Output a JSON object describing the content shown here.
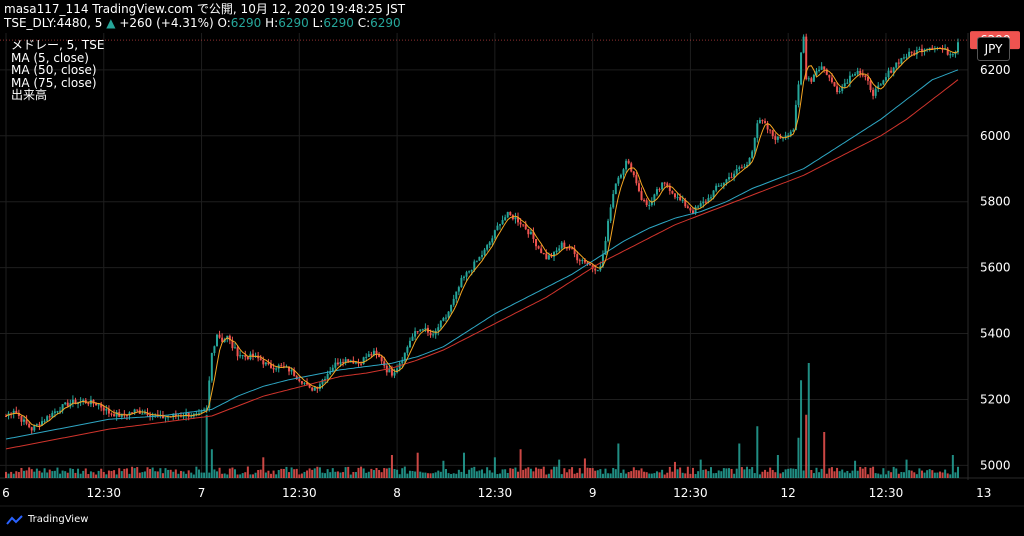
{
  "header": {
    "line1": "masa117_114 TradingView.com で公開, 10月 12, 2020 19:48:25 JST",
    "symbol": "TSE_DLY:4480, 5",
    "last": "6290",
    "change": "+260 (+4.31%)",
    "o_label": "O:",
    "o_value": "6290",
    "h_label": "H:",
    "h_value": "6290",
    "l_label": "L:",
    "l_value": "6290",
    "c_label": "C:",
    "c_value": "6290"
  },
  "legend": {
    "title": "メドレー, 5, TSE",
    "ma5": "MA (5, close)",
    "ma50": "MA (50, close)",
    "ma75": "MA (75, close)",
    "volume": "出来高"
  },
  "currency": "JPY",
  "branding": "TradingView",
  "colors": {
    "up": "#26a69a",
    "down": "#ef5350",
    "ma5": "#f5a623",
    "ma50": "#2ea7c4",
    "ma75": "#d0342c",
    "price_line": "#ef5350",
    "grid": "#1e1e1e"
  },
  "chart_data": {
    "type": "candlestick",
    "title": "メドレー, 5, TSE",
    "x_tick_labels": [
      "6",
      "12:30",
      "7",
      "12:30",
      "8",
      "12:30",
      "9",
      "12:30",
      "12",
      "12:30",
      "13"
    ],
    "y_tick_labels": [
      "5000",
      "5200",
      "5400",
      "5600",
      "5800",
      "6000",
      "6200"
    ],
    "ylim": [
      4980,
      6330
    ],
    "last_price": 6290,
    "last_price_label": "6290",
    "grid": true,
    "series": [
      {
        "name": "MA (5, close)",
        "type": "line"
      },
      {
        "name": "MA (50, close)",
        "type": "line"
      },
      {
        "name": "MA (75, close)",
        "type": "line"
      },
      {
        "name": "出来高",
        "type": "volume"
      }
    ],
    "close_path": [
      [
        0,
        5150
      ],
      [
        3,
        5170
      ],
      [
        6,
        5140
      ],
      [
        10,
        5110
      ],
      [
        15,
        5140
      ],
      [
        20,
        5170
      ],
      [
        25,
        5190
      ],
      [
        30,
        5195
      ],
      [
        36,
        5185
      ],
      [
        40,
        5160
      ],
      [
        45,
        5150
      ],
      [
        50,
        5165
      ],
      [
        55,
        5160
      ],
      [
        60,
        5145
      ],
      [
        65,
        5150
      ],
      [
        70,
        5155
      ],
      [
        75,
        5150
      ],
      [
        78,
        5170
      ],
      [
        80,
        5340
      ],
      [
        81,
        5370
      ],
      [
        82,
        5400
      ],
      [
        84,
        5380
      ],
      [
        86,
        5390
      ],
      [
        88,
        5360
      ],
      [
        90,
        5340
      ],
      [
        93,
        5330
      ],
      [
        96,
        5330
      ],
      [
        99,
        5320
      ],
      [
        102,
        5300
      ],
      [
        106,
        5300
      ],
      [
        110,
        5290
      ],
      [
        113,
        5270
      ],
      [
        116,
        5250
      ],
      [
        118,
        5230
      ],
      [
        121,
        5240
      ],
      [
        124,
        5270
      ],
      [
        127,
        5300
      ],
      [
        130,
        5320
      ],
      [
        134,
        5320
      ],
      [
        137,
        5310
      ],
      [
        140,
        5330
      ],
      [
        143,
        5340
      ],
      [
        146,
        5320
      ],
      [
        148,
        5290
      ],
      [
        150,
        5280
      ],
      [
        152,
        5300
      ],
      [
        155,
        5340
      ],
      [
        157,
        5380
      ],
      [
        159,
        5400
      ],
      [
        162,
        5420
      ],
      [
        164,
        5400
      ],
      [
        166,
        5390
      ],
      [
        168,
        5420
      ],
      [
        171,
        5450
      ],
      [
        174,
        5500
      ],
      [
        177,
        5560
      ],
      [
        180,
        5590
      ],
      [
        183,
        5620
      ],
      [
        186,
        5650
      ],
      [
        189,
        5690
      ],
      [
        192,
        5740
      ],
      [
        195,
        5760
      ],
      [
        198,
        5750
      ],
      [
        201,
        5730
      ],
      [
        204,
        5700
      ],
      [
        207,
        5660
      ],
      [
        210,
        5630
      ],
      [
        213,
        5640
      ],
      [
        216,
        5670
      ],
      [
        219,
        5660
      ],
      [
        222,
        5630
      ],
      [
        225,
        5620
      ],
      [
        228,
        5600
      ],
      [
        231,
        5600
      ],
      [
        233,
        5680
      ],
      [
        235,
        5790
      ],
      [
        237,
        5860
      ],
      [
        239,
        5890
      ],
      [
        241,
        5920
      ],
      [
        243,
        5900
      ],
      [
        245,
        5860
      ],
      [
        247,
        5810
      ],
      [
        249,
        5790
      ],
      [
        251,
        5800
      ],
      [
        253,
        5830
      ],
      [
        255,
        5850
      ],
      [
        257,
        5850
      ],
      [
        259,
        5830
      ],
      [
        261,
        5810
      ],
      [
        264,
        5790
      ],
      [
        267,
        5770
      ],
      [
        270,
        5790
      ],
      [
        273,
        5810
      ],
      [
        276,
        5840
      ],
      [
        279,
        5860
      ],
      [
        282,
        5880
      ],
      [
        285,
        5900
      ],
      [
        288,
        5910
      ],
      [
        290,
        5960
      ],
      [
        292,
        6040
      ],
      [
        294,
        6040
      ],
      [
        296,
        6020
      ],
      [
        298,
        6000
      ],
      [
        300,
        5990
      ],
      [
        302,
        6000
      ],
      [
        304,
        6010
      ],
      [
        306,
        6020
      ],
      [
        308,
        6150
      ],
      [
        309,
        6250
      ],
      [
        310,
        6300
      ],
      [
        311,
        6180
      ],
      [
        313,
        6170
      ],
      [
        315,
        6200
      ],
      [
        317,
        6210
      ],
      [
        319,
        6190
      ],
      [
        321,
        6160
      ],
      [
        323,
        6140
      ],
      [
        325,
        6150
      ],
      [
        327,
        6170
      ],
      [
        329,
        6190
      ],
      [
        331,
        6200
      ],
      [
        333,
        6180
      ],
      [
        335,
        6160
      ],
      [
        337,
        6130
      ],
      [
        340,
        6150
      ],
      [
        343,
        6190
      ],
      [
        346,
        6220
      ],
      [
        349,
        6240
      ],
      [
        352,
        6250
      ],
      [
        355,
        6260
      ],
      [
        358,
        6270
      ],
      [
        361,
        6270
      ],
      [
        364,
        6260
      ],
      [
        367,
        6250
      ],
      [
        369,
        6260
      ],
      [
        370,
        6290
      ]
    ],
    "ma50_path": [
      [
        0,
        5080
      ],
      [
        20,
        5110
      ],
      [
        40,
        5140
      ],
      [
        60,
        5150
      ],
      [
        80,
        5170
      ],
      [
        90,
        5210
      ],
      [
        100,
        5240
      ],
      [
        110,
        5260
      ],
      [
        120,
        5275
      ],
      [
        130,
        5290
      ],
      [
        140,
        5300
      ],
      [
        150,
        5310
      ],
      [
        160,
        5330
      ],
      [
        170,
        5360
      ],
      [
        180,
        5410
      ],
      [
        190,
        5460
      ],
      [
        200,
        5500
      ],
      [
        210,
        5540
      ],
      [
        220,
        5580
      ],
      [
        230,
        5630
      ],
      [
        240,
        5680
      ],
      [
        250,
        5720
      ],
      [
        260,
        5750
      ],
      [
        270,
        5770
      ],
      [
        280,
        5800
      ],
      [
        290,
        5840
      ],
      [
        300,
        5870
      ],
      [
        310,
        5900
      ],
      [
        320,
        5950
      ],
      [
        330,
        6000
      ],
      [
        340,
        6050
      ],
      [
        350,
        6110
      ],
      [
        360,
        6170
      ],
      [
        370,
        6200
      ]
    ],
    "ma75_path": [
      [
        0,
        5050
      ],
      [
        20,
        5080
      ],
      [
        40,
        5110
      ],
      [
        60,
        5130
      ],
      [
        80,
        5150
      ],
      [
        90,
        5180
      ],
      [
        100,
        5210
      ],
      [
        110,
        5230
      ],
      [
        120,
        5250
      ],
      [
        130,
        5270
      ],
      [
        140,
        5280
      ],
      [
        150,
        5295
      ],
      [
        160,
        5320
      ],
      [
        170,
        5350
      ],
      [
        180,
        5390
      ],
      [
        190,
        5430
      ],
      [
        200,
        5470
      ],
      [
        210,
        5510
      ],
      [
        220,
        5560
      ],
      [
        230,
        5610
      ],
      [
        240,
        5650
      ],
      [
        250,
        5690
      ],
      [
        260,
        5730
      ],
      [
        270,
        5760
      ],
      [
        280,
        5790
      ],
      [
        290,
        5820
      ],
      [
        300,
        5850
      ],
      [
        310,
        5880
      ],
      [
        320,
        5920
      ],
      [
        330,
        5960
      ],
      [
        340,
        6000
      ],
      [
        350,
        6050
      ],
      [
        360,
        6110
      ],
      [
        370,
        6170
      ]
    ],
    "volume_spikes": [
      [
        78,
        0.55
      ],
      [
        80,
        0.25
      ],
      [
        178,
        0.22
      ],
      [
        200,
        0.25
      ],
      [
        238,
        0.3
      ],
      [
        285,
        0.3
      ],
      [
        292,
        0.45
      ],
      [
        308,
        0.35
      ],
      [
        309,
        0.85
      ],
      [
        311,
        0.55
      ],
      [
        312,
        1.0
      ],
      [
        318,
        0.4
      ],
      [
        100,
        0.18
      ],
      [
        150,
        0.2
      ],
      [
        160,
        0.22
      ],
      [
        170,
        0.15
      ],
      [
        190,
        0.18
      ],
      [
        215,
        0.16
      ],
      [
        225,
        0.17
      ],
      [
        260,
        0.14
      ],
      [
        270,
        0.16
      ],
      [
        300,
        0.2
      ],
      [
        330,
        0.15
      ],
      [
        350,
        0.16
      ],
      [
        368,
        0.2
      ]
    ]
  }
}
